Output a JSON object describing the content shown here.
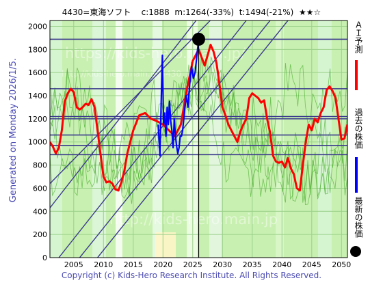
{
  "header": {
    "code_name": "4430=東海ソフト",
    "current": "c:1888",
    "mid": "m:1264(-33%)",
    "target": "t:1494(-21%)",
    "stars": "★★☆"
  },
  "side_label": "Generated on Monday 2026/1/5.",
  "footer": "Copyright (c) Kids-Hero Research Institute. All Rights Reserved.",
  "watermark": {
    "top": "https://kids-hero.main.jp/",
    "top_small": "http://kids-hero.main.jp/4430",
    "bottom": "http://kids-hero.main.jp"
  },
  "legend": [
    {
      "label": "ＡＩ予測",
      "color": "#ff0000"
    },
    {
      "label": "過去の株価",
      "color": "#0000ff"
    },
    {
      "label": "最新の株価",
      "color": "#000000"
    }
  ],
  "chart_data": {
    "type": "line",
    "title": "",
    "xlabel": "",
    "ylabel": "",
    "xlim": [
      2001,
      2051
    ],
    "ylim": [
      0,
      2050
    ],
    "xticks": [
      2005,
      2010,
      2015,
      2020,
      2025,
      2030,
      2035,
      2040,
      2045,
      2050
    ],
    "yticks": [
      0,
      200,
      400,
      600,
      800,
      1000,
      1200,
      1400,
      1600,
      1800,
      2000
    ],
    "grid": true,
    "latest_price": {
      "x": 2026.0,
      "y": 1888
    },
    "horizontal_levels": [
      1888,
      1460,
      1220,
      1200,
      1060,
      970,
      890
    ],
    "trend_channel_lines": [
      {
        "x": [
          2001,
          2031
        ],
        "y": [
          640,
          2210
        ]
      },
      {
        "x": [
          2001,
          2028
        ],
        "y": [
          430,
          2210
        ]
      },
      {
        "x": [
          2002.5,
          2034
        ],
        "y": [
          0,
          2050
        ]
      },
      {
        "x": [
          2006,
          2038
        ],
        "y": [
          0,
          2050
        ]
      },
      {
        "x": [
          2009,
          2041
        ],
        "y": [
          0,
          2050
        ]
      }
    ],
    "series": [
      {
        "name": "ＡＩ予測",
        "color": "#ff0000",
        "x": [
          2001,
          2001.5,
          2002,
          2002.5,
          2003,
          2003.5,
          2004,
          2004.5,
          2005,
          2005.5,
          2006,
          2006.5,
          2007,
          2007.5,
          2008,
          2008.5,
          2009,
          2009.5,
          2010,
          2010.5,
          2011,
          2011.5,
          2012,
          2012.5,
          2013,
          2013.5,
          2014,
          2015,
          2016,
          2017,
          2018,
          2019,
          2020,
          2021,
          2022,
          2023,
          2024,
          2025,
          2026,
          2027,
          2027.5,
          2028,
          2028.5,
          2029,
          2029.5,
          2030,
          2030.5,
          2031,
          2031.5,
          2032,
          2032.5,
          2033,
          2033.5,
          2034,
          2034.5,
          2035,
          2035.5,
          2036,
          2036.5,
          2037,
          2037.5,
          2038,
          2038.5,
          2039,
          2039.5,
          2040,
          2040.5,
          2041,
          2041.5,
          2042,
          2042.5,
          2043,
          2043.5,
          2044,
          2044.5,
          2045,
          2045.5,
          2046,
          2046.5,
          2047,
          2047.5,
          2048,
          2048.5,
          2049,
          2049.5,
          2050,
          2050.5,
          2051
        ],
        "y": [
          1000,
          960,
          900,
          950,
          1100,
          1350,
          1420,
          1460,
          1430,
          1300,
          1280,
          1300,
          1330,
          1320,
          1370,
          1300,
          1100,
          900,
          700,
          650,
          660,
          640,
          590,
          580,
          650,
          750,
          900,
          1100,
          1230,
          1250,
          1200,
          1180,
          1150,
          1100,
          1050,
          1150,
          1450,
          1700,
          1800,
          1660,
          1750,
          1840,
          1780,
          1680,
          1500,
          1300,
          1230,
          1150,
          1100,
          1050,
          1000,
          1090,
          1150,
          1200,
          1380,
          1420,
          1400,
          1380,
          1340,
          1360,
          1200,
          1080,
          880,
          830,
          820,
          830,
          780,
          860,
          770,
          720,
          600,
          580,
          800,
          1000,
          1150,
          1100,
          1200,
          1170,
          1250,
          1300,
          1450,
          1480,
          1440,
          1380,
          1200,
          1020,
          1030,
          1150
        ]
      },
      {
        "name": "過去の株価",
        "color": "#0000ff",
        "x": [
          2019.2,
          2019.5,
          2019.7,
          2019.9,
          2020.1,
          2020.3,
          2020.5,
          2020.7,
          2020.9,
          2021.1,
          2021.3,
          2021.5,
          2021.7,
          2021.9,
          2022.1,
          2022.3,
          2022.5,
          2022.7,
          2022.9,
          2023.1,
          2023.3,
          2023.6,
          2023.9,
          2024.2,
          2024.5,
          2024.8,
          2025.1,
          2025.4,
          2025.7,
          2026.0
        ],
        "y": [
          1150,
          880,
          1350,
          1750,
          1150,
          1250,
          1050,
          1300,
          1150,
          1350,
          1180,
          1100,
          950,
          1200,
          1050,
          960,
          900,
          950,
          1050,
          1050,
          1100,
          1250,
          1400,
          1300,
          1500,
          1650,
          1550,
          1600,
          1750,
          1888
        ]
      }
    ]
  }
}
